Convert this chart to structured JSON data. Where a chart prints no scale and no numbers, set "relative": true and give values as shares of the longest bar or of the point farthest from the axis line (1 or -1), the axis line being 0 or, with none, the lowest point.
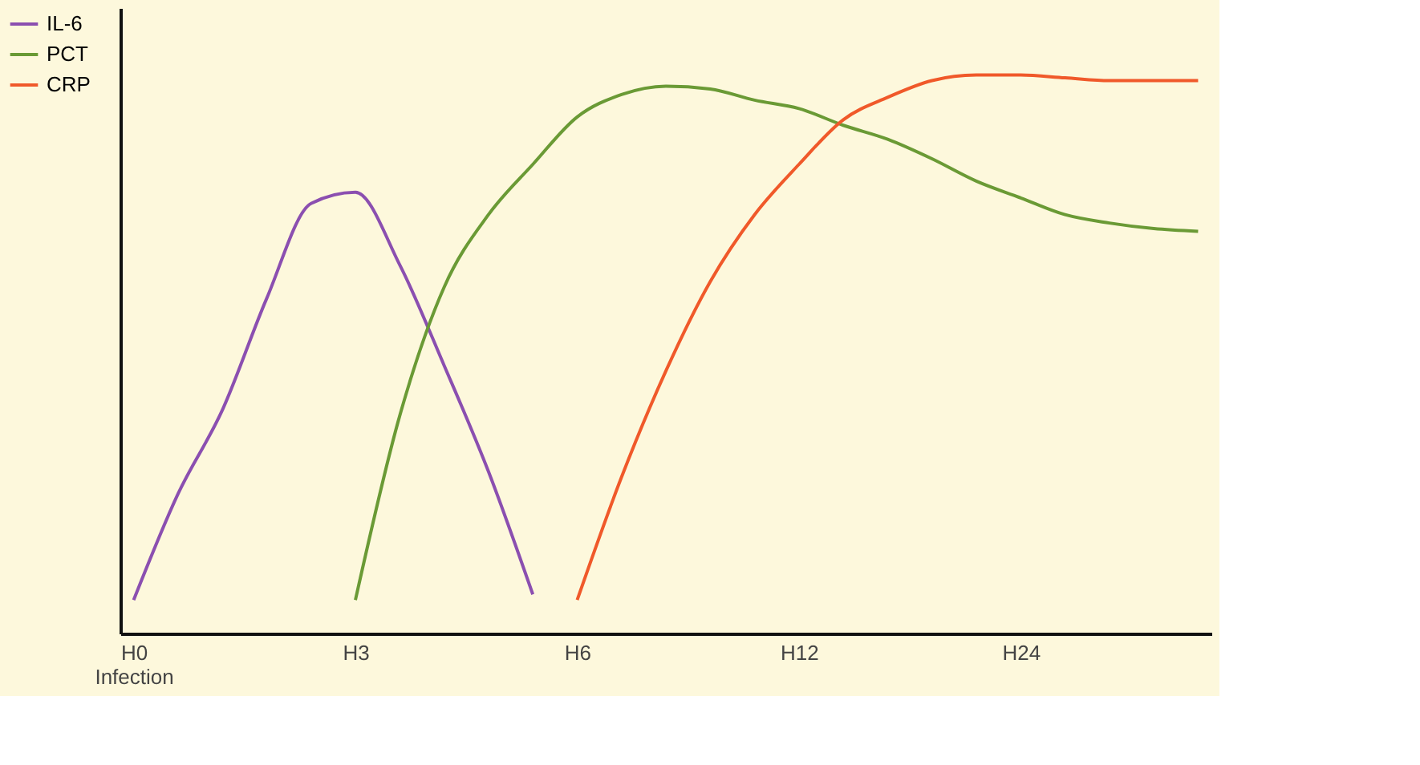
{
  "chart_data": {
    "type": "line",
    "relative": true,
    "legend": "top left",
    "grid": false,
    "marker": "none",
    "line_style": "solid",
    "categories": [
      "H0\nInfection",
      null,
      null,
      null,
      null,
      "H3",
      null,
      null,
      null,
      null,
      "H6",
      null,
      null,
      null,
      null,
      "H12",
      null,
      null,
      null,
      null,
      "H24",
      null,
      null,
      null,
      null
    ],
    "series": [
      {
        "name": "IL-6",
        "color": "#8b4fb0",
        "values": [
          0.06,
          0.25,
          0.4,
          0.6,
          0.77,
          0.79,
          0.66,
          0.48,
          0.29,
          0.07,
          null,
          null,
          null,
          null,
          null,
          null,
          null,
          null,
          null,
          null,
          null,
          null,
          null,
          null,
          null
        ]
      },
      {
        "name": "PCT",
        "color": "#6a9a35",
        "values": [
          null,
          null,
          null,
          null,
          null,
          0.06,
          0.39,
          0.62,
          0.75,
          0.84,
          0.925,
          0.965,
          0.98,
          0.975,
          0.955,
          0.94,
          0.91,
          0.885,
          0.85,
          0.81,
          0.78,
          0.75,
          0.735,
          0.725,
          0.72
        ]
      },
      {
        "name": "CRP",
        "color": "#f0592a",
        "values": [
          null,
          null,
          null,
          null,
          null,
          null,
          null,
          null,
          null,
          null,
          0.06,
          0.28,
          0.47,
          0.63,
          0.75,
          0.84,
          0.92,
          0.96,
          0.99,
          1.0,
          1.0,
          0.995,
          0.99,
          0.99,
          0.99
        ]
      }
    ]
  }
}
